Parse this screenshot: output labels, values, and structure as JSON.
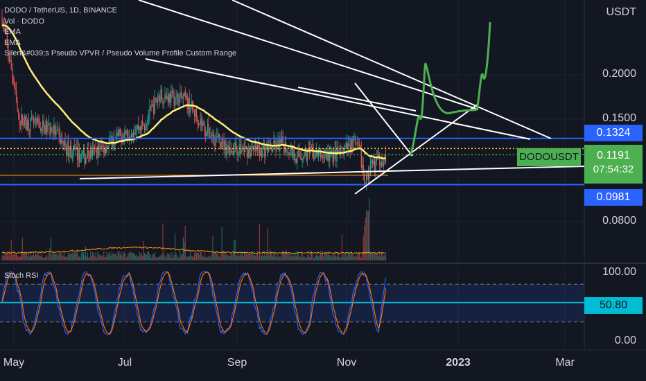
{
  "legend": {
    "symbol": "DODO / TetherUS, 1D, BINANCE",
    "vol": "Vol · DODO",
    "ema1": "EMA",
    "ema2": "EMA",
    "vpvr": "Silen&#039;s Pseudo VPVR / Pseudo Volume Profile Custom Range"
  },
  "stoch_label": "Stoch RSI",
  "price_axis": {
    "currency": "USDT",
    "ticks": [
      "0.2000",
      "0.1500",
      "0.0800"
    ],
    "tags": {
      "upper_line": "0.1324",
      "last_price": "0.1191",
      "countdown": "07:54:32",
      "lower_line": "0.0981",
      "symbol_tag": "DODOUSDT"
    }
  },
  "stoch_axis": {
    "ticks": [
      "100.00",
      "0.00"
    ],
    "value": "50.80"
  },
  "time_axis": [
    "May",
    "Jul",
    "Sep",
    "Nov",
    "2023",
    "Mar"
  ],
  "colors": {
    "background": "#131722",
    "up": "#26a69a",
    "down": "#ef5350",
    "ema_yellow": "#fff176",
    "hline_blue": "#2962ff",
    "forecast_green": "#4caf50",
    "stoch_k": "#2962ff",
    "stoch_d": "#ff6d00",
    "stoch_band": "#00bcd4"
  },
  "chart_data": {
    "type": "candlestick",
    "price_scale": "log",
    "x_range": [
      "2022-04-26",
      "2023-03-20"
    ],
    "y_range": [
      0.065,
      0.29
    ],
    "last_price": 0.1191,
    "horizontal_lines": [
      0.1324,
      0.0981
    ],
    "stoch_rsi": {
      "upper_band": 80,
      "lower_band": 20,
      "value": 50.8,
      "range": [
        0,
        100
      ]
    }
  }
}
